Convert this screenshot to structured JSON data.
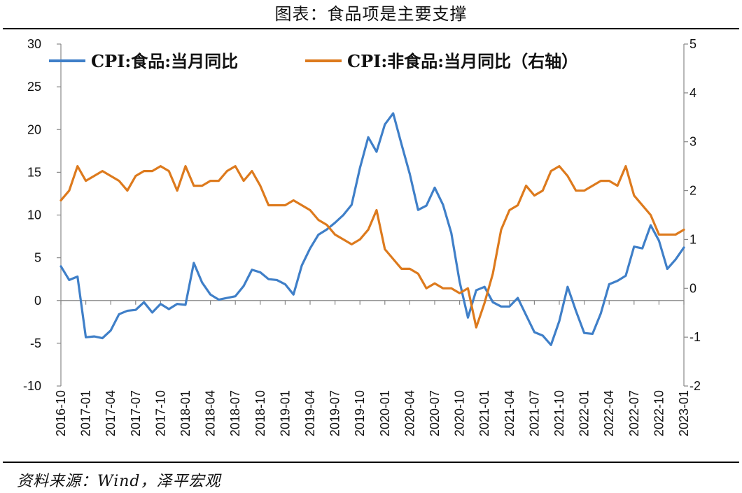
{
  "title": "图表：食品项是主要支撑",
  "source": "资料来源：Wind，泽平宏观",
  "colors": {
    "food": "#3f7fc8",
    "nonfood": "#dd7a1d",
    "axis": "#888888"
  },
  "chart_data": {
    "type": "line",
    "title": "图表：食品项是主要支撑",
    "legend_position": "top",
    "grid": false,
    "x": [
      "2016-10",
      "2016-11",
      "2016-12",
      "2017-01",
      "2017-02",
      "2017-03",
      "2017-04",
      "2017-05",
      "2017-06",
      "2017-07",
      "2017-08",
      "2017-09",
      "2017-10",
      "2017-11",
      "2017-12",
      "2018-01",
      "2018-02",
      "2018-03",
      "2018-04",
      "2018-05",
      "2018-06",
      "2018-07",
      "2018-08",
      "2018-09",
      "2018-10",
      "2018-11",
      "2018-12",
      "2019-01",
      "2019-02",
      "2019-03",
      "2019-04",
      "2019-05",
      "2019-06",
      "2019-07",
      "2019-08",
      "2019-09",
      "2019-10",
      "2019-11",
      "2019-12",
      "2020-01",
      "2020-02",
      "2020-03",
      "2020-04",
      "2020-05",
      "2020-06",
      "2020-07",
      "2020-08",
      "2020-09",
      "2020-10",
      "2020-11",
      "2020-12",
      "2021-01",
      "2021-02",
      "2021-03",
      "2021-04",
      "2021-05",
      "2021-06",
      "2021-07",
      "2021-08",
      "2021-09",
      "2021-10",
      "2021-11",
      "2021-12",
      "2022-01",
      "2022-02",
      "2022-03",
      "2022-04",
      "2022-05",
      "2022-06",
      "2022-07",
      "2022-08",
      "2022-09",
      "2022-10",
      "2022-11",
      "2022-12",
      "2023-01"
    ],
    "x_tick_labels": [
      "2016-10",
      "2017-01",
      "2017-04",
      "2017-07",
      "2017-10",
      "2018-01",
      "2018-04",
      "2018-07",
      "2018-10",
      "2019-01",
      "2019-04",
      "2019-07",
      "2019-10",
      "2020-01",
      "2020-04",
      "2020-07",
      "2020-10",
      "2021-01",
      "2021-04",
      "2021-07",
      "2021-10",
      "2022-01",
      "2022-04",
      "2022-07",
      "2022-10",
      "2023-01"
    ],
    "y_left": {
      "min": -10,
      "max": 30,
      "ticks": [
        30,
        25,
        20,
        15,
        10,
        5,
        0,
        -5,
        -10
      ]
    },
    "y_right": {
      "min": -2,
      "max": 5,
      "ticks": [
        5,
        4,
        3,
        2,
        1,
        0,
        -1,
        -2
      ]
    },
    "series": [
      {
        "name": "CPI:食品:当月同比",
        "axis": "left",
        "color": "#3f7fc8",
        "values": [
          4.0,
          2.4,
          2.8,
          -4.3,
          -4.2,
          -4.4,
          -3.5,
          -1.6,
          -1.2,
          -1.1,
          -0.2,
          -1.4,
          -0.4,
          -1.0,
          -0.4,
          -0.5,
          4.4,
          2.1,
          0.7,
          0.1,
          0.3,
          0.5,
          1.7,
          3.6,
          3.3,
          2.5,
          2.4,
          1.9,
          0.7,
          4.1,
          6.1,
          7.7,
          8.3,
          9.1,
          10.0,
          11.2,
          15.5,
          19.1,
          17.4,
          20.6,
          21.9,
          18.3,
          14.8,
          10.6,
          11.1,
          13.2,
          11.2,
          7.9,
          2.2,
          -2.0,
          1.2,
          1.6,
          -0.2,
          -0.7,
          -0.7,
          0.3,
          -1.7,
          -3.7,
          -4.1,
          -5.2,
          -2.4,
          1.6,
          -1.2,
          -3.8,
          -3.9,
          -1.5,
          1.9,
          2.3,
          2.9,
          6.3,
          6.1,
          8.8,
          7.0,
          3.7,
          4.8,
          6.2
        ]
      },
      {
        "name": "CPI:非食品:当月同比（右轴）",
        "axis": "right",
        "color": "#dd7a1d",
        "values": [
          1.8,
          2.0,
          2.5,
          2.2,
          2.3,
          2.4,
          2.3,
          2.2,
          2.0,
          2.3,
          2.4,
          2.4,
          2.5,
          2.4,
          2.0,
          2.5,
          2.1,
          2.1,
          2.2,
          2.2,
          2.4,
          2.5,
          2.2,
          2.4,
          2.1,
          1.7,
          1.7,
          1.7,
          1.8,
          1.7,
          1.6,
          1.4,
          1.3,
          1.1,
          1.0,
          0.9,
          1.0,
          1.2,
          1.6,
          0.8,
          0.6,
          0.4,
          0.4,
          0.3,
          0.0,
          0.1,
          0.0,
          0.0,
          -0.1,
          0.0,
          -0.8,
          -0.3,
          0.3,
          1.2,
          1.6,
          1.7,
          2.1,
          1.9,
          2.0,
          2.4,
          2.5,
          2.3,
          2.0,
          2.0,
          2.1,
          2.2,
          2.2,
          2.1,
          2.5,
          1.9,
          1.7,
          1.5,
          1.1,
          1.1,
          1.1,
          1.2
        ]
      }
    ]
  }
}
